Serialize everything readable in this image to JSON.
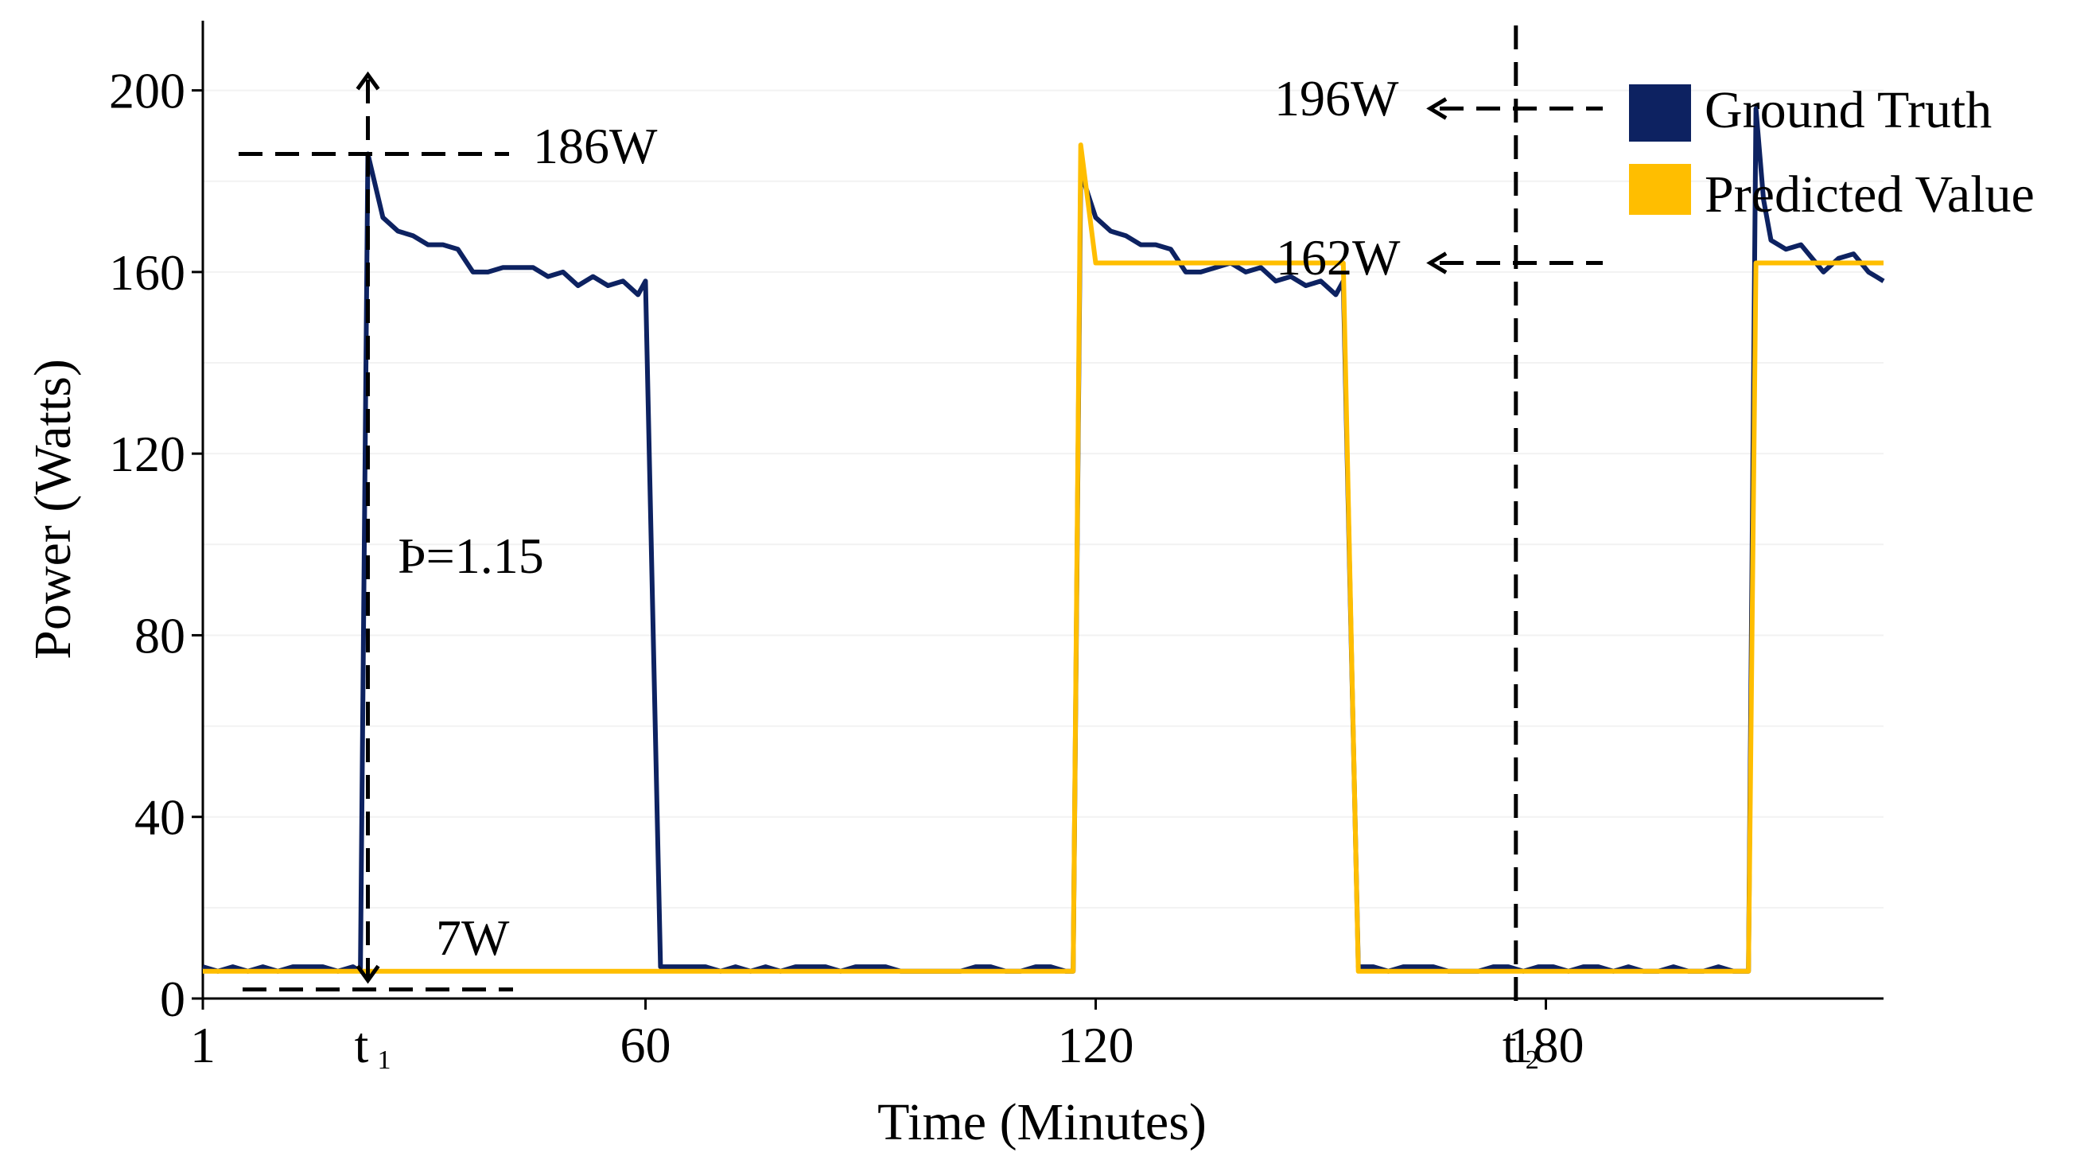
{
  "chart_data": {
    "type": "line",
    "xlabel": "Time (Minutes)",
    "ylabel": "Power (Watts)",
    "xlim": [
      1,
      225
    ],
    "ylim": [
      0,
      215
    ],
    "yticks": [
      0,
      40,
      80,
      120,
      160,
      200
    ],
    "xticks": [
      {
        "value": 1,
        "label": "1"
      },
      {
        "value": 60,
        "label": "60"
      },
      {
        "value": 120,
        "label": "120"
      },
      {
        "value": 180,
        "label": "180"
      }
    ],
    "special_ticks": [
      {
        "value": 23,
        "main": "t",
        "sub": "1"
      },
      {
        "value": 176,
        "main": "t",
        "sub": "2"
      }
    ],
    "grid": true,
    "legend_position": "top-right",
    "series": [
      {
        "name": "Ground Truth",
        "color": "#0d2261",
        "points": [
          [
            1,
            7
          ],
          [
            3,
            6
          ],
          [
            5,
            7
          ],
          [
            7,
            6
          ],
          [
            9,
            7
          ],
          [
            11,
            6
          ],
          [
            13,
            7
          ],
          [
            15,
            7
          ],
          [
            17,
            7
          ],
          [
            19,
            6
          ],
          [
            21,
            7
          ],
          [
            22,
            6
          ],
          [
            23,
            186
          ],
          [
            25,
            172
          ],
          [
            27,
            169
          ],
          [
            29,
            168
          ],
          [
            31,
            166
          ],
          [
            33,
            166
          ],
          [
            35,
            165
          ],
          [
            37,
            160
          ],
          [
            39,
            160
          ],
          [
            41,
            161
          ],
          [
            43,
            161
          ],
          [
            45,
            161
          ],
          [
            47,
            159
          ],
          [
            49,
            160
          ],
          [
            51,
            157
          ],
          [
            53,
            159
          ],
          [
            55,
            157
          ],
          [
            57,
            158
          ],
          [
            59,
            155
          ],
          [
            60,
            158
          ],
          [
            62,
            7
          ],
          [
            64,
            7
          ],
          [
            66,
            7
          ],
          [
            68,
            7
          ],
          [
            70,
            6
          ],
          [
            72,
            7
          ],
          [
            74,
            6
          ],
          [
            76,
            7
          ],
          [
            78,
            6
          ],
          [
            80,
            7
          ],
          [
            82,
            7
          ],
          [
            84,
            7
          ],
          [
            86,
            6
          ],
          [
            88,
            7
          ],
          [
            90,
            7
          ],
          [
            92,
            7
          ],
          [
            94,
            6
          ],
          [
            96,
            6
          ],
          [
            98,
            6
          ],
          [
            100,
            6
          ],
          [
            102,
            6
          ],
          [
            104,
            7
          ],
          [
            106,
            7
          ],
          [
            108,
            6
          ],
          [
            110,
            6
          ],
          [
            112,
            7
          ],
          [
            114,
            7
          ],
          [
            116,
            6
          ],
          [
            117,
            6
          ],
          [
            118,
            182
          ],
          [
            120,
            172
          ],
          [
            122,
            169
          ],
          [
            124,
            168
          ],
          [
            126,
            166
          ],
          [
            128,
            166
          ],
          [
            130,
            165
          ],
          [
            132,
            160
          ],
          [
            134,
            160
          ],
          [
            136,
            161
          ],
          [
            138,
            162
          ],
          [
            140,
            160
          ],
          [
            142,
            161
          ],
          [
            144,
            158
          ],
          [
            146,
            159
          ],
          [
            148,
            157
          ],
          [
            150,
            158
          ],
          [
            152,
            155
          ],
          [
            153,
            158
          ],
          [
            155,
            7
          ],
          [
            157,
            7
          ],
          [
            159,
            6
          ],
          [
            161,
            7
          ],
          [
            163,
            7
          ],
          [
            165,
            7
          ],
          [
            167,
            6
          ],
          [
            169,
            6
          ],
          [
            171,
            6
          ],
          [
            173,
            7
          ],
          [
            175,
            7
          ],
          [
            177,
            6
          ],
          [
            179,
            7
          ],
          [
            181,
            7
          ],
          [
            183,
            6
          ],
          [
            185,
            7
          ],
          [
            187,
            7
          ],
          [
            189,
            6
          ],
          [
            191,
            7
          ],
          [
            193,
            6
          ],
          [
            195,
            6
          ],
          [
            197,
            7
          ],
          [
            199,
            6
          ],
          [
            201,
            6
          ],
          [
            203,
            7
          ],
          [
            205,
            6
          ],
          [
            207,
            6
          ],
          [
            208,
            196
          ],
          [
            209,
            176
          ],
          [
            210,
            167
          ],
          [
            212,
            165
          ],
          [
            214,
            166
          ],
          [
            215,
            164
          ],
          [
            217,
            160
          ],
          [
            219,
            163
          ],
          [
            221,
            164
          ],
          [
            223,
            160
          ],
          [
            224,
            159
          ],
          [
            225,
            158
          ]
        ]
      },
      {
        "name": "Predicted Value",
        "color": "#ffbe00",
        "points": [
          [
            1,
            6
          ],
          [
            117,
            6
          ],
          [
            118,
            188
          ],
          [
            120,
            162
          ],
          [
            153,
            162
          ],
          [
            155,
            6
          ],
          [
            207,
            6
          ],
          [
            208,
            162
          ],
          [
            225,
            162
          ]
        ]
      }
    ],
    "annotations": [
      {
        "label": "186W"
      },
      {
        "label": "7W"
      },
      {
        "label": "Þ=1.15"
      },
      {
        "label": "196W"
      },
      {
        "label": "162W"
      }
    ]
  }
}
